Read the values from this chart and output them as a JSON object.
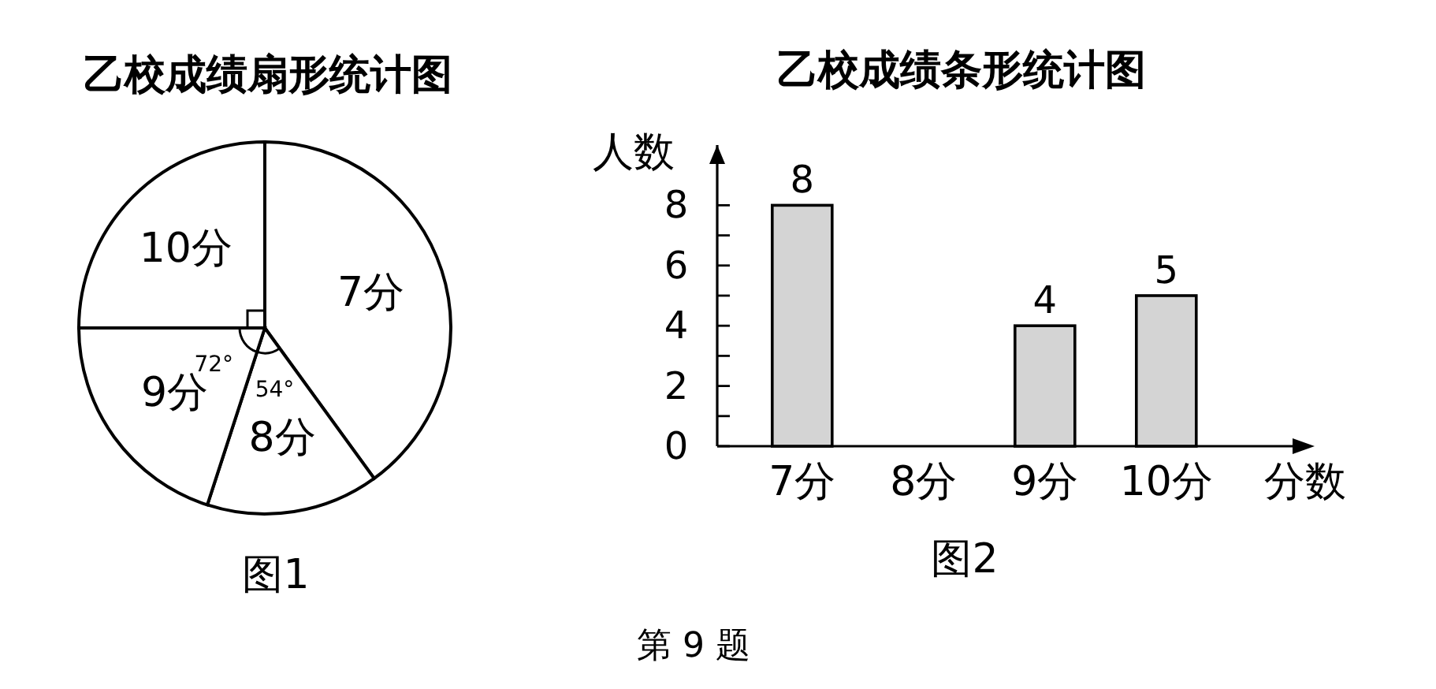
{
  "chart_data": [
    {
      "type": "pie",
      "title": "乙校成绩扇形统计图",
      "categories": [
        "7分",
        "8分",
        "9分",
        "10分"
      ],
      "values": [
        40,
        15,
        20,
        25
      ],
      "colors": [
        "#ffffff",
        "#ffffff",
        "#ffffff",
        "#ffffff"
      ],
      "annotations": [
        "72°",
        "54°",
        "图1"
      ]
    },
    {
      "type": "bar",
      "title": "乙校成绩条形统计图",
      "categories": [
        "7分",
        "8分",
        "9分",
        "10分"
      ],
      "values": [
        8,
        null,
        4,
        5
      ],
      "color": "#d4d4d4",
      "xlabel": "分数",
      "ylabel": "人数",
      "ylim": [
        0,
        10
      ],
      "yticks": [
        0,
        {
          "value": 1,
          "label": null
        },
        2,
        {
          "value": 3,
          "label": null
        },
        4,
        {
          "value": 5,
          "label": null
        },
        6,
        {
          "value": 7,
          "label": null
        },
        8
      ],
      "data_labels": true,
      "annotations": [
        "图2",
        "第 9 题"
      ]
    }
  ]
}
